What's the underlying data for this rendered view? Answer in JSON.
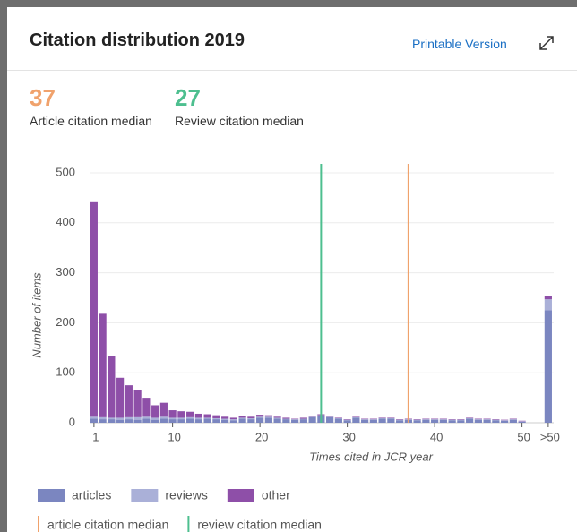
{
  "header": {
    "title": "Citation distribution 2019",
    "link": "Printable Version"
  },
  "chart_data": {
    "type": "stacked-bar",
    "xlabel": "Times cited in JCR year",
    "ylabel": "Number of items",
    "categories": [
      "1",
      null,
      null,
      null,
      null,
      null,
      null,
      null,
      null,
      "10",
      null,
      null,
      null,
      null,
      null,
      null,
      null,
      null,
      null,
      "20",
      null,
      null,
      null,
      null,
      null,
      null,
      null,
      null,
      null,
      "30",
      null,
      null,
      null,
      null,
      null,
      null,
      null,
      null,
      null,
      "40",
      null,
      null,
      null,
      null,
      null,
      null,
      null,
      null,
      null,
      "50",
      ">50"
    ],
    "series": [
      {
        "name": "articles",
        "color": "#7b86c0",
        "values": [
          8,
          7,
          7,
          6,
          7,
          6,
          8,
          6,
          8,
          7,
          7,
          8,
          7,
          8,
          7,
          6,
          5,
          8,
          7,
          10,
          10,
          8,
          7,
          6,
          7,
          11,
          13,
          11,
          8,
          5,
          10,
          6,
          6,
          8,
          8,
          5,
          6,
          5,
          6,
          6,
          6,
          5,
          5,
          8,
          6,
          6,
          5,
          4,
          6,
          2,
          225
        ]
      },
      {
        "name": "reviews",
        "color": "#aab0d8",
        "values": [
          4,
          4,
          3,
          4,
          4,
          5,
          4,
          4,
          4,
          3,
          3,
          3,
          3,
          2,
          2,
          2,
          2,
          2,
          2,
          2,
          2,
          2,
          1,
          1,
          1,
          1,
          2,
          1,
          1,
          1,
          1,
          1,
          1,
          1,
          1,
          1,
          1,
          1,
          1,
          1,
          1,
          1,
          1,
          1,
          1,
          1,
          1,
          1,
          1,
          1,
          22
        ]
      },
      {
        "name": "other",
        "color": "#8e4fa8",
        "values": [
          431,
          207,
          123,
          80,
          64,
          54,
          38,
          25,
          28,
          15,
          13,
          11,
          8,
          7,
          6,
          4,
          3,
          4,
          3,
          4,
          3,
          2,
          2,
          1,
          2,
          2,
          2,
          2,
          1,
          1,
          1,
          1,
          1,
          1,
          1,
          1,
          1,
          1,
          1,
          1,
          1,
          1,
          1,
          1,
          1,
          1,
          1,
          1,
          1,
          1,
          6
        ]
      }
    ],
    "medians": [
      {
        "name": "article citation median",
        "caption": "Article citation median",
        "value": 37,
        "color": "#f0a26c"
      },
      {
        "name": "review citation median",
        "caption": "Review citation median",
        "value": 27,
        "color": "#4dbf8f"
      }
    ],
    "ylim": [
      0,
      500
    ],
    "yticks": [
      0,
      100,
      200,
      300,
      400,
      500
    ],
    "grid": true
  }
}
